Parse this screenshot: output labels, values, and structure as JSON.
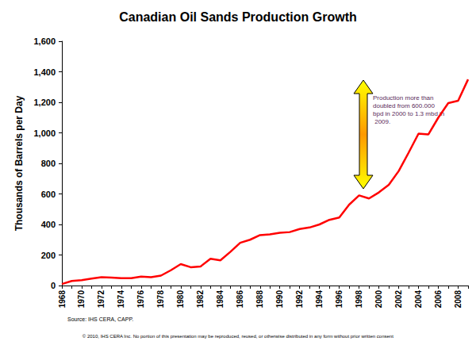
{
  "chart_data": {
    "type": "line",
    "title": "Canadian Oil Sands Production Growth",
    "y_label": "Thousands of Barrels per Day",
    "source": "Source: IHS CERA, CAPP.",
    "footer": "© 2010, IHS CERA Inc. No portion of this presentation may be reproduced, reused, or otherwise distributed in any form without prior written consent",
    "annotations": [
      {
        "text": "Production more than doubled from 600.000 bpd in 2000 to 1.3 mbd in 2009."
      }
    ],
    "categories": [
      "1968",
      null,
      "1970",
      null,
      "1972",
      null,
      "1974",
      null,
      "1976",
      null,
      "1978",
      null,
      "1980",
      null,
      "1982",
      null,
      "1984",
      null,
      "1986",
      null,
      "1988",
      null,
      "1990",
      null,
      "1992",
      null,
      "1994",
      null,
      "1996",
      null,
      "1998",
      null,
      "2000",
      null,
      "2002",
      null,
      "2004",
      null,
      "2006",
      null,
      "2008",
      null
    ],
    "values": [
      10,
      30,
      35,
      45,
      55,
      52,
      48,
      48,
      58,
      55,
      65,
      100,
      140,
      120,
      125,
      175,
      165,
      220,
      280,
      300,
      330,
      335,
      345,
      350,
      370,
      380,
      400,
      430,
      445,
      530,
      590,
      570,
      610,
      660,
      750,
      870,
      995,
      990,
      1100,
      1195,
      1210,
      1350
    ],
    "color": "#ff0000",
    "ylim": [
      0,
      1600
    ],
    "yticks": [
      0,
      200,
      400,
      600,
      800,
      {
        "value": 1000,
        "label": "1,000"
      },
      {
        "value": 1200,
        "label": "1,200"
      },
      {
        "value": 1400,
        "label": "1,400"
      },
      {
        "value": 1600,
        "label": "1,600"
      }
    ],
    "grid": false
  }
}
